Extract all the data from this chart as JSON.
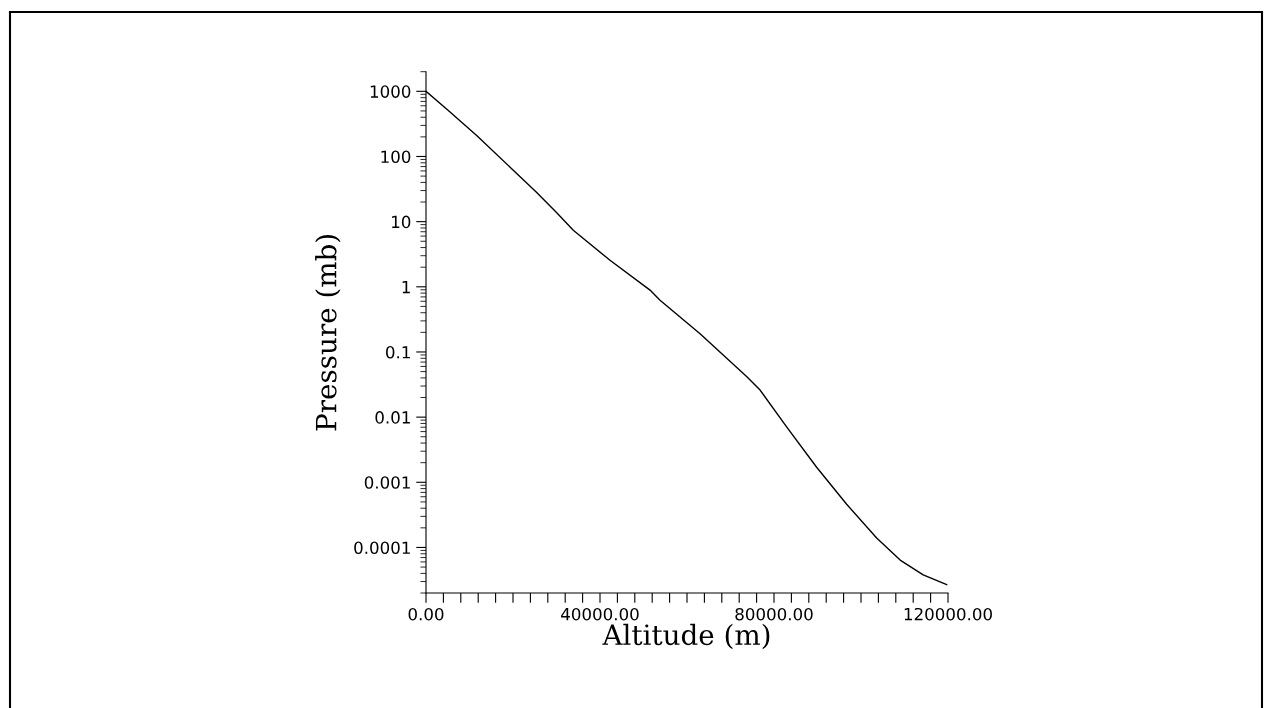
{
  "chart_data": {
    "type": "line",
    "xlabel": "Altitude (m)",
    "ylabel": "Pressure (mb)",
    "log": "y",
    "grid": false,
    "marker": "none",
    "line_style": "solid",
    "x": [
      0,
      5000,
      11650,
      20000,
      25450,
      30000,
      33860,
      42300,
      51500,
      53800,
      63000,
      73700,
      76800,
      82900,
      89800,
      96700,
      103600,
      109000,
      114300,
      119700
    ],
    "series": [
      {
        "color": "#000000",
        "values": [
          1000,
          515,
          210,
          62,
          28,
          13.8,
          7.4,
          2.55,
          0.89,
          0.62,
          0.19,
          0.042,
          0.026,
          0.0071,
          0.0017,
          0.00046,
          0.00014,
          6.4e-05,
          3.8e-05,
          2.7e-05
        ]
      }
    ],
    "xlim": [
      0,
      120000
    ],
    "ylim": [
      2e-05,
      2000
    ],
    "xticks": [
      {
        "value": 0,
        "label": "0.00"
      },
      {
        "value": 4000,
        "label": null
      },
      {
        "value": 8000,
        "label": null
      },
      {
        "value": 12000,
        "label": null
      },
      {
        "value": 16000,
        "label": null
      },
      {
        "value": 20000,
        "label": null
      },
      {
        "value": 24000,
        "label": null
      },
      {
        "value": 28000,
        "label": null
      },
      {
        "value": 32000,
        "label": null
      },
      {
        "value": 36000,
        "label": null
      },
      {
        "value": 40000,
        "label": "40000.00"
      },
      {
        "value": 44000,
        "label": null
      },
      {
        "value": 48000,
        "label": null
      },
      {
        "value": 52000,
        "label": null
      },
      {
        "value": 56000,
        "label": null
      },
      {
        "value": 60000,
        "label": null
      },
      {
        "value": 64000,
        "label": null
      },
      {
        "value": 68000,
        "label": null
      },
      {
        "value": 72000,
        "label": null
      },
      {
        "value": 76000,
        "label": null
      },
      {
        "value": 80000,
        "label": "80000.00"
      },
      {
        "value": 84000,
        "label": null
      },
      {
        "value": 88000,
        "label": null
      },
      {
        "value": 92000,
        "label": null
      },
      {
        "value": 96000,
        "label": null
      },
      {
        "value": 100000,
        "label": null
      },
      {
        "value": 104000,
        "label": null
      },
      {
        "value": 108000,
        "label": null
      },
      {
        "value": 112000,
        "label": null
      },
      {
        "value": 116000,
        "label": null
      },
      {
        "value": 120000,
        "label": "120000.00"
      }
    ],
    "yticks": [
      {
        "value": 0.0001,
        "label": "0.0001"
      },
      {
        "value": 0.001,
        "label": "0.001"
      },
      {
        "value": 0.01,
        "label": "0.01"
      },
      {
        "value": 0.1,
        "label": "0.1"
      },
      1,
      10,
      100,
      1000
    ]
  }
}
